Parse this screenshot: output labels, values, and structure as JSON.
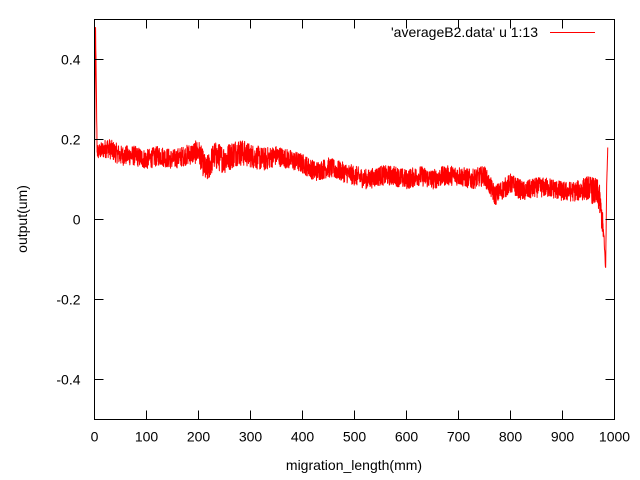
{
  "chart_data": {
    "type": "line",
    "title": "",
    "xlabel": "migration_length(mm)",
    "ylabel": "output(um)",
    "xlim": [
      0,
      1000
    ],
    "ylim": [
      -0.5,
      0.5
    ],
    "x_ticks": [
      0,
      100,
      200,
      300,
      400,
      500,
      600,
      700,
      800,
      900,
      1000
    ],
    "y_ticks": [
      -0.4,
      -0.2,
      0,
      0.2,
      0.4
    ],
    "x_tick_labels": [
      "0",
      "100",
      "200",
      "300",
      "400",
      "500",
      "600",
      "700",
      "800",
      "900",
      "1000"
    ],
    "y_tick_labels": [
      "-0.4",
      "-0.2",
      "0",
      "0.2",
      "0.4"
    ],
    "grid": false,
    "legend_position": "top-right",
    "series": [
      {
        "name": "'averageB2.data' u 1:13",
        "color": "#ff0000",
        "x": [
          0,
          2,
          5,
          10,
          25,
          50,
          75,
          100,
          125,
          150,
          175,
          200,
          215,
          230,
          250,
          275,
          300,
          325,
          350,
          375,
          400,
          425,
          450,
          475,
          500,
          525,
          550,
          575,
          600,
          625,
          650,
          675,
          700,
          725,
          750,
          770,
          800,
          825,
          850,
          875,
          900,
          925,
          950,
          970,
          978,
          983,
          985,
          987
        ],
        "y": [
          0.14,
          0.48,
          0.17,
          0.17,
          0.18,
          0.16,
          0.16,
          0.15,
          0.16,
          0.15,
          0.16,
          0.17,
          0.12,
          0.16,
          0.15,
          0.17,
          0.16,
          0.15,
          0.16,
          0.15,
          0.14,
          0.12,
          0.13,
          0.12,
          0.11,
          0.1,
          0.11,
          0.11,
          0.1,
          0.11,
          0.1,
          0.11,
          0.11,
          0.1,
          0.11,
          0.06,
          0.09,
          0.07,
          0.08,
          0.08,
          0.07,
          0.07,
          0.08,
          0.06,
          -0.02,
          -0.12,
          0.09,
          0.18
        ],
        "noise": [
          0.01,
          0.01,
          0.02,
          0.02,
          0.025,
          0.025,
          0.025,
          0.025,
          0.025,
          0.025,
          0.025,
          0.03,
          0.035,
          0.035,
          0.035,
          0.035,
          0.03,
          0.03,
          0.025,
          0.025,
          0.025,
          0.025,
          0.025,
          0.025,
          0.025,
          0.025,
          0.025,
          0.025,
          0.025,
          0.025,
          0.025,
          0.025,
          0.025,
          0.025,
          0.025,
          0.025,
          0.025,
          0.025,
          0.025,
          0.025,
          0.025,
          0.025,
          0.03,
          0.04,
          0.03,
          0.01,
          0.01,
          0.01
        ]
      }
    ]
  }
}
